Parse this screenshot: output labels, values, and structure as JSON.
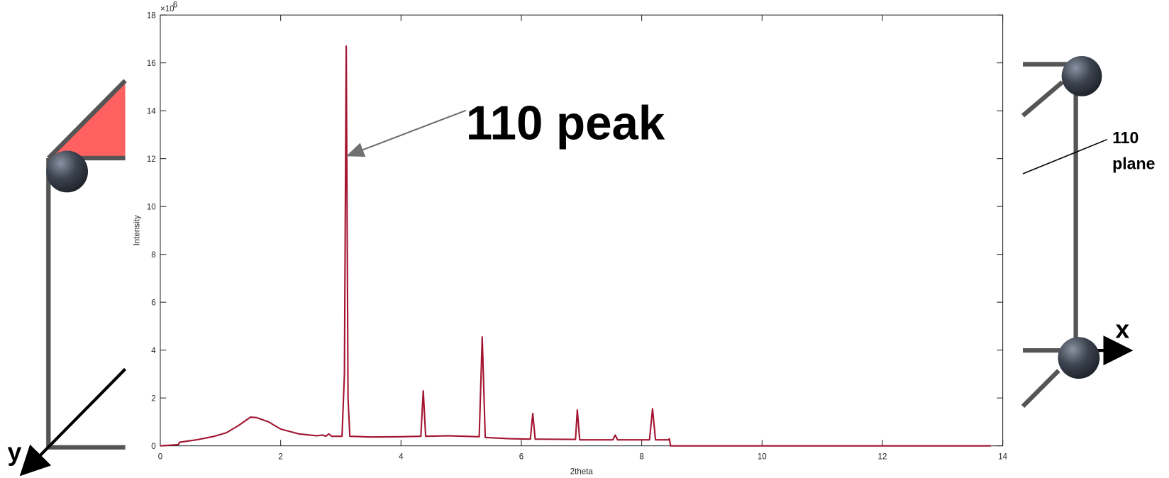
{
  "chart_data": {
    "type": "line",
    "x_label": "2theta",
    "y_label": "Intensity",
    "y_scale_label": "×10",
    "y_exponent": 6,
    "annotation": "110 peak",
    "xlim": [
      0,
      14
    ],
    "ylim": [
      0,
      18
    ],
    "xticks": [
      0,
      2,
      4,
      6,
      8,
      10,
      12,
      14
    ],
    "yticks": [
      0,
      2,
      4,
      6,
      8,
      10,
      12,
      14,
      16,
      18
    ],
    "x": [
      0,
      0.3,
      0.32,
      0.6,
      0.9,
      1.1,
      1.3,
      1.5,
      1.6,
      1.8,
      2.0,
      2.3,
      2.6,
      2.7,
      2.75,
      2.8,
      2.85,
      3.02,
      3.06,
      3.09,
      3.12,
      3.15,
      3.5,
      4.0,
      4.33,
      4.37,
      4.41,
      4.8,
      5.3,
      5.35,
      5.4,
      5.8,
      6.15,
      6.19,
      6.23,
      6.9,
      6.93,
      6.97,
      7.52,
      7.56,
      7.6,
      8.13,
      8.18,
      8.23,
      8.45,
      8.46,
      8.48,
      13.8
    ],
    "series": [
      {
        "color": "#a2142f",
        "values": [
          0,
          0.05,
          0.15,
          0.25,
          0.4,
          0.55,
          0.85,
          1.2,
          1.18,
          1.0,
          0.7,
          0.5,
          0.42,
          0.45,
          0.4,
          0.5,
          0.4,
          0.4,
          3,
          16.7,
          2,
          0.4,
          0.37,
          0.38,
          0.4,
          2.3,
          0.4,
          0.42,
          0.38,
          4.55,
          0.35,
          0.3,
          0.28,
          1.35,
          0.28,
          0.27,
          1.5,
          0.25,
          0.25,
          0.45,
          0.25,
          0.25,
          1.55,
          0.25,
          0.25,
          0.3,
          0,
          0
        ]
      }
    ]
  },
  "decor": {
    "y_axis_label": "y",
    "x_axis_label": "x",
    "plane_label": [
      "110",
      "plane"
    ]
  }
}
